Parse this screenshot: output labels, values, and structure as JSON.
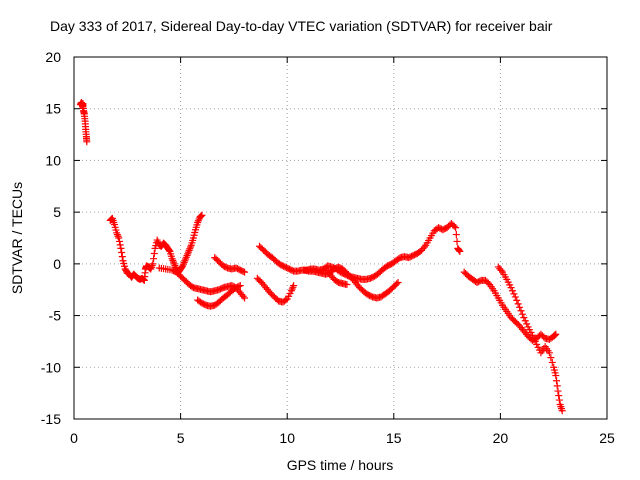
{
  "chart_data": {
    "type": "scatter",
    "title": "Day 333 of 2017, Sidereal Day-to-day VTEC variation (SDTVAR) for receiver bair",
    "xlabel": "GPS time / hours",
    "ylabel": "SDTVAR / TECUs",
    "xlim": [
      0,
      25
    ],
    "ylim": [
      -15,
      20
    ],
    "xticks": [
      0,
      5,
      10,
      15,
      20,
      25
    ],
    "yticks": [
      -15,
      -10,
      -5,
      0,
      5,
      10,
      15,
      20
    ],
    "grid": true,
    "marker": "+",
    "color": "#ff0000",
    "series": [
      {
        "name": "s1",
        "points": [
          [
            0.3,
            15.4
          ],
          [
            0.35,
            15.6
          ],
          [
            0.4,
            15.2
          ],
          [
            0.42,
            15.5
          ],
          [
            0.45,
            14.8
          ],
          [
            0.48,
            14.5
          ],
          [
            0.52,
            13.8
          ],
          [
            0.55,
            13.0
          ],
          [
            0.58,
            12.3
          ],
          [
            0.6,
            11.8
          ]
        ]
      },
      {
        "name": "s2",
        "points": [
          [
            1.7,
            4.2
          ],
          [
            1.8,
            4.4
          ],
          [
            1.9,
            3.8
          ],
          [
            2.0,
            3.0
          ],
          [
            2.1,
            2.5
          ],
          [
            2.2,
            1.5
          ],
          [
            2.3,
            0.3
          ],
          [
            2.4,
            -0.5
          ],
          [
            2.5,
            -0.9
          ],
          [
            2.6,
            -1.0
          ],
          [
            2.7,
            -1.3
          ],
          [
            2.8,
            -1.0
          ],
          [
            2.9,
            -1.2
          ],
          [
            3.0,
            -1.4
          ],
          [
            3.1,
            -1.5
          ],
          [
            3.2,
            -1.4
          ],
          [
            3.3,
            -1.6
          ],
          [
            3.35,
            -0.5
          ],
          [
            3.4,
            -0.2
          ],
          [
            3.5,
            -0.3
          ],
          [
            3.6,
            -0.5
          ],
          [
            3.7,
            0.0
          ],
          [
            3.8,
            1.5
          ],
          [
            3.9,
            2.3
          ],
          [
            4.0,
            1.8
          ],
          [
            4.1,
            1.7
          ],
          [
            4.2,
            2.0
          ],
          [
            4.3,
            1.8
          ],
          [
            4.4,
            1.5
          ],
          [
            4.5,
            1.2
          ],
          [
            4.6,
            0.5
          ],
          [
            4.7,
            0.0
          ],
          [
            4.8,
            -0.5
          ],
          [
            4.9,
            -0.8
          ],
          [
            5.0,
            -0.5
          ],
          [
            5.1,
            -0.2
          ],
          [
            5.2,
            0.3
          ],
          [
            5.3,
            0.8
          ],
          [
            5.4,
            1.3
          ],
          [
            5.5,
            1.8
          ],
          [
            5.6,
            2.5
          ],
          [
            5.7,
            3.3
          ],
          [
            5.8,
            4.0
          ],
          [
            5.9,
            4.5
          ],
          [
            6.0,
            4.7
          ]
        ]
      },
      {
        "name": "s3",
        "points": [
          [
            4.0,
            -0.4
          ],
          [
            4.3,
            -0.5
          ],
          [
            4.6,
            -0.6
          ],
          [
            4.8,
            -0.8
          ],
          [
            5.0,
            -1.2
          ],
          [
            5.2,
            -1.6
          ],
          [
            5.4,
            -2.0
          ],
          [
            5.6,
            -2.3
          ],
          [
            5.8,
            -2.4
          ],
          [
            6.0,
            -2.5
          ],
          [
            6.2,
            -2.6
          ],
          [
            6.4,
            -2.7
          ],
          [
            6.6,
            -2.6
          ],
          [
            6.8,
            -2.5
          ],
          [
            7.0,
            -2.3
          ],
          [
            7.2,
            -2.2
          ],
          [
            7.4,
            -2.1
          ],
          [
            7.6,
            -2.3
          ],
          [
            7.8,
            -2.8
          ],
          [
            8.0,
            -3.3
          ]
        ]
      },
      {
        "name": "s4",
        "points": [
          [
            5.8,
            -3.5
          ],
          [
            6.0,
            -3.8
          ],
          [
            6.2,
            -4.0
          ],
          [
            6.4,
            -4.1
          ],
          [
            6.6,
            -4.0
          ],
          [
            6.8,
            -3.7
          ],
          [
            7.0,
            -3.3
          ],
          [
            7.2,
            -3.0
          ],
          [
            7.4,
            -2.6
          ],
          [
            7.6,
            -2.3
          ],
          [
            7.8,
            -2.1
          ]
        ]
      },
      {
        "name": "s5",
        "points": [
          [
            6.6,
            0.6
          ],
          [
            6.8,
            0.2
          ],
          [
            7.0,
            -0.2
          ],
          [
            7.2,
            -0.4
          ],
          [
            7.4,
            -0.5
          ],
          [
            7.6,
            -0.4
          ],
          [
            7.8,
            -0.6
          ],
          [
            8.0,
            -0.8
          ]
        ]
      },
      {
        "name": "s6",
        "points": [
          [
            8.7,
            1.7
          ],
          [
            8.9,
            1.3
          ],
          [
            9.1,
            0.9
          ],
          [
            9.3,
            0.6
          ],
          [
            9.5,
            0.2
          ],
          [
            9.7,
            -0.1
          ],
          [
            9.9,
            -0.3
          ],
          [
            10.1,
            -0.5
          ],
          [
            10.3,
            -0.7
          ],
          [
            10.5,
            -0.7
          ],
          [
            10.7,
            -0.6
          ],
          [
            10.9,
            -0.6
          ],
          [
            11.1,
            -0.5
          ],
          [
            11.3,
            -0.5
          ],
          [
            11.5,
            -0.6
          ],
          [
            11.7,
            -0.5
          ],
          [
            11.9,
            -0.2
          ],
          [
            12.1,
            -0.3
          ],
          [
            12.3,
            -0.5
          ],
          [
            12.5,
            -0.8
          ],
          [
            12.7,
            -1.0
          ],
          [
            12.9,
            -1.2
          ],
          [
            13.1,
            -1.3
          ],
          [
            13.3,
            -1.4
          ],
          [
            13.5,
            -1.5
          ],
          [
            13.7,
            -1.5
          ],
          [
            13.9,
            -1.4
          ],
          [
            14.1,
            -1.2
          ],
          [
            14.3,
            -0.9
          ],
          [
            14.5,
            -0.5
          ],
          [
            14.7,
            -0.2
          ],
          [
            14.9,
            0.0
          ],
          [
            15.1,
            0.3
          ],
          [
            15.3,
            0.6
          ],
          [
            15.5,
            0.7
          ],
          [
            15.7,
            0.6
          ],
          [
            15.9,
            0.8
          ],
          [
            16.1,
            1.0
          ],
          [
            16.3,
            1.3
          ],
          [
            16.5,
            1.8
          ],
          [
            16.7,
            2.5
          ],
          [
            16.9,
            3.2
          ],
          [
            17.1,
            3.5
          ],
          [
            17.3,
            3.3
          ],
          [
            17.5,
            3.5
          ],
          [
            17.7,
            3.9
          ],
          [
            17.9,
            3.5
          ],
          [
            18.0,
            1.5
          ],
          [
            18.1,
            1.2
          ]
        ]
      },
      {
        "name": "s7",
        "points": [
          [
            8.6,
            -1.4
          ],
          [
            8.8,
            -1.8
          ],
          [
            9.0,
            -2.3
          ],
          [
            9.2,
            -2.8
          ],
          [
            9.4,
            -3.2
          ],
          [
            9.6,
            -3.6
          ],
          [
            9.8,
            -3.7
          ],
          [
            10.0,
            -3.4
          ],
          [
            10.2,
            -2.6
          ],
          [
            10.3,
            -2.1
          ]
        ]
      },
      {
        "name": "s8",
        "points": [
          [
            10.8,
            -0.6
          ],
          [
            11.0,
            -0.7
          ],
          [
            11.2,
            -0.7
          ],
          [
            11.4,
            -0.8
          ],
          [
            11.6,
            -0.9
          ],
          [
            11.8,
            -1.0
          ],
          [
            12.0,
            -0.9
          ],
          [
            12.2,
            -0.5
          ],
          [
            12.4,
            -0.3
          ],
          [
            12.6,
            -0.5
          ],
          [
            12.8,
            -0.9
          ],
          [
            13.0,
            -1.3
          ],
          [
            13.2,
            -1.8
          ],
          [
            13.4,
            -2.3
          ],
          [
            13.6,
            -2.7
          ],
          [
            13.8,
            -3.0
          ],
          [
            14.0,
            -3.2
          ],
          [
            14.2,
            -3.3
          ],
          [
            14.4,
            -3.2
          ],
          [
            14.6,
            -2.9
          ],
          [
            14.8,
            -2.6
          ],
          [
            15.0,
            -2.2
          ],
          [
            15.2,
            -1.8
          ]
        ]
      },
      {
        "name": "s9",
        "points": [
          [
            11.8,
            -0.5
          ],
          [
            12.0,
            -1.0
          ],
          [
            12.2,
            -1.5
          ],
          [
            12.4,
            -1.8
          ],
          [
            12.6,
            -1.9
          ],
          [
            12.8,
            -2.0
          ]
        ]
      },
      {
        "name": "s10",
        "points": [
          [
            18.3,
            -0.8
          ],
          [
            18.5,
            -1.2
          ],
          [
            18.7,
            -1.5
          ],
          [
            18.9,
            -1.8
          ],
          [
            19.1,
            -1.6
          ],
          [
            19.3,
            -1.6
          ],
          [
            19.5,
            -2.0
          ],
          [
            19.7,
            -2.6
          ],
          [
            19.9,
            -3.3
          ],
          [
            20.1,
            -4.0
          ],
          [
            20.3,
            -4.6
          ],
          [
            20.5,
            -5.2
          ],
          [
            20.7,
            -5.6
          ],
          [
            20.9,
            -6.0
          ],
          [
            21.1,
            -6.5
          ],
          [
            21.3,
            -7.0
          ],
          [
            21.5,
            -7.4
          ],
          [
            21.7,
            -7.2
          ],
          [
            21.9,
            -6.8
          ],
          [
            22.1,
            -7.2
          ],
          [
            22.3,
            -7.3
          ],
          [
            22.5,
            -7.0
          ],
          [
            22.6,
            -6.8
          ]
        ]
      },
      {
        "name": "s11",
        "points": [
          [
            19.9,
            -0.3
          ],
          [
            20.1,
            -0.8
          ],
          [
            20.3,
            -1.5
          ],
          [
            20.5,
            -2.3
          ],
          [
            20.7,
            -3.2
          ],
          [
            20.9,
            -4.2
          ],
          [
            21.1,
            -5.2
          ],
          [
            21.3,
            -6.1
          ],
          [
            21.5,
            -6.9
          ],
          [
            21.7,
            -7.8
          ],
          [
            21.9,
            -8.6
          ],
          [
            22.1,
            -8.0
          ],
          [
            22.3,
            -8.6
          ],
          [
            22.5,
            -10.0
          ],
          [
            22.6,
            -10.8
          ],
          [
            22.7,
            -12.3
          ],
          [
            22.8,
            -13.6
          ],
          [
            22.9,
            -14.2
          ]
        ]
      }
    ]
  }
}
